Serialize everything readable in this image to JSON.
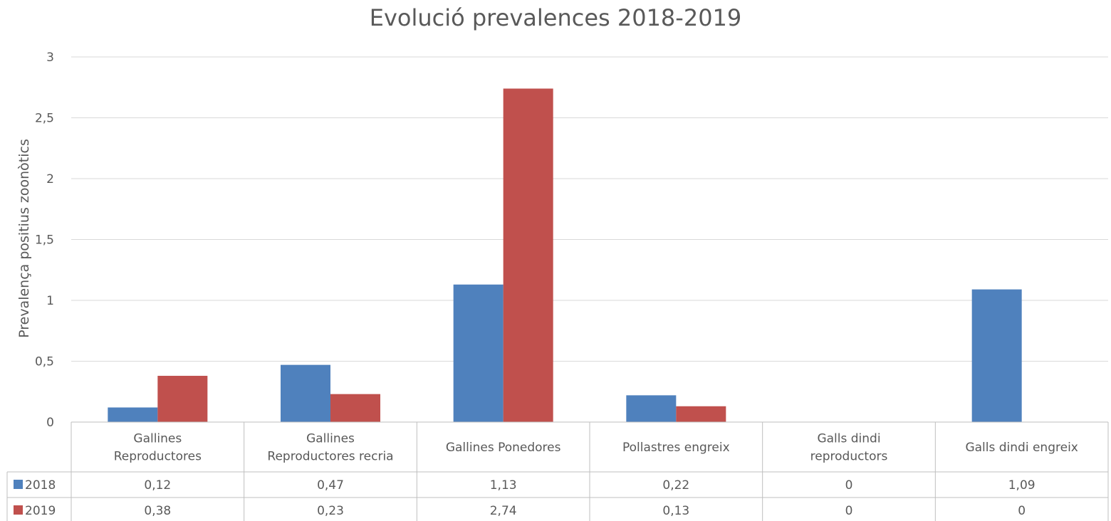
{
  "chart_data": {
    "type": "bar",
    "title": "Evolució prevalences 2018-2019",
    "xlabel": "",
    "ylabel": "Prevalença positius zoonòtics",
    "ylim": [
      0,
      3
    ],
    "yticks": [
      "0",
      "0,5",
      "1",
      "1,5",
      "2",
      "2,5",
      "3"
    ],
    "categories": [
      [
        "Gallines",
        "Reproductores"
      ],
      [
        "Gallines",
        "Reproductores recria"
      ],
      [
        "Gallines Ponedores"
      ],
      [
        "Pollastres engreix"
      ],
      [
        "Galls dindi",
        "reproductors"
      ],
      [
        "Galls dindi engreix"
      ]
    ],
    "series": [
      {
        "name": "2018",
        "color": "#4f81bd",
        "values": [
          0.12,
          0.47,
          1.13,
          0.22,
          0,
          1.09
        ],
        "labels": [
          "0,12",
          "0,47",
          "1,13",
          "0,22",
          "0",
          "1,09"
        ]
      },
      {
        "name": "2019",
        "color": "#c0504d",
        "values": [
          0.38,
          0.23,
          2.74,
          0.13,
          0,
          0
        ],
        "labels": [
          "0,38",
          "0,23",
          "2,74",
          "0,13",
          "0",
          "0"
        ]
      }
    ],
    "grid": true,
    "legend": "data-table"
  }
}
